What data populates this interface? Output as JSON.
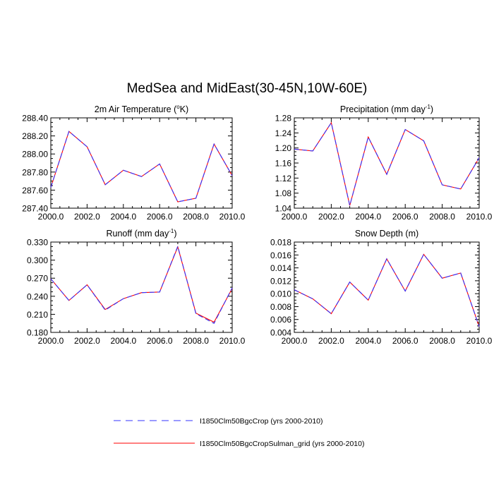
{
  "figure": {
    "title": "MedSea and MidEast(30-45N,10W-60E)"
  },
  "legend": {
    "entries": [
      {
        "label": "I1850Clm50BgcCrop (yrs 2000-2010)",
        "color": "#3333ff",
        "dash": true
      },
      {
        "label": "I1850Clm50BgcCropSulman_grid (yrs 2000-2010)",
        "color": "#ff0000",
        "dash": false
      }
    ]
  },
  "chart_data": [
    {
      "type": "line",
      "title": "2m Air Temperature (°K)",
      "title_parts": {
        "pre": "2m Air Temperature (",
        "sup": "o",
        "post": "K)"
      },
      "x": [
        2000,
        2001,
        2002,
        2003,
        2004,
        2005,
        2006,
        2007,
        2008,
        2009,
        2010
      ],
      "xlim": [
        2000,
        2010
      ],
      "xticks": [
        "2000.0",
        "2002.0",
        "2004.0",
        "2006.0",
        "2008.0",
        "2010.0"
      ],
      "ylim": [
        287.4,
        288.4
      ],
      "yticks": [
        "287.40",
        "287.60",
        "287.80",
        "288.00",
        "288.20",
        "288.40"
      ],
      "series": [
        {
          "name": "I1850Clm50BgcCrop (yrs 2000-2010)",
          "values": [
            287.63,
            288.25,
            288.08,
            287.66,
            287.82,
            287.75,
            287.89,
            287.47,
            287.51,
            288.11,
            287.76
          ]
        },
        {
          "name": "I1850Clm50BgcCropSulman_grid (yrs 2000-2010)",
          "values": [
            287.63,
            288.25,
            288.08,
            287.66,
            287.82,
            287.75,
            287.89,
            287.47,
            287.51,
            288.11,
            287.76
          ]
        }
      ]
    },
    {
      "type": "line",
      "title": "Precipitation (mm day-1)",
      "title_parts": {
        "pre": "Precipitation (mm day",
        "sup": "-1",
        "post": ")"
      },
      "x": [
        2000,
        2001,
        2002,
        2003,
        2004,
        2005,
        2006,
        2007,
        2008,
        2009,
        2010
      ],
      "xlim": [
        2000,
        2010
      ],
      "xticks": [
        "2000.0",
        "2002.0",
        "2004.0",
        "2006.0",
        "2008.0",
        "2010.0"
      ],
      "ylim": [
        1.04,
        1.28
      ],
      "yticks": [
        "1.04",
        "1.08",
        "1.12",
        "1.16",
        "1.20",
        "1.24",
        "1.28"
      ],
      "series": [
        {
          "name": "I1850Clm50BgcCrop (yrs 2000-2010)",
          "values": [
            1.197,
            1.192,
            1.267,
            1.047,
            1.229,
            1.13,
            1.249,
            1.219,
            1.102,
            1.091,
            1.174
          ]
        },
        {
          "name": "I1850Clm50BgcCropSulman_grid (yrs 2000-2010)",
          "values": [
            1.197,
            1.192,
            1.267,
            1.047,
            1.229,
            1.13,
            1.249,
            1.219,
            1.102,
            1.091,
            1.174
          ]
        }
      ]
    },
    {
      "type": "line",
      "title": "Runoff (mm day-1)",
      "title_parts": {
        "pre": "Runoff (mm day",
        "sup": "-1",
        "post": ")"
      },
      "x": [
        2000,
        2001,
        2002,
        2003,
        2004,
        2005,
        2006,
        2007,
        2008,
        2009,
        2010
      ],
      "xlim": [
        2000,
        2010
      ],
      "xticks": [
        "2000.0",
        "2002.0",
        "2004.0",
        "2006.0",
        "2008.0",
        "2010.0"
      ],
      "ylim": [
        0.18,
        0.33
      ],
      "yticks": [
        "0.180",
        "0.210",
        "0.240",
        "0.270",
        "0.300",
        "0.330"
      ],
      "series": [
        {
          "name": "I1850Clm50BgcCrop (yrs 2000-2010)",
          "values": [
            0.269,
            0.233,
            0.259,
            0.217,
            0.236,
            0.246,
            0.247,
            0.323,
            0.211,
            0.195,
            0.254
          ]
        },
        {
          "name": "I1850Clm50BgcCropSulman_grid (yrs 2000-2010)",
          "values": [
            0.269,
            0.233,
            0.259,
            0.218,
            0.236,
            0.246,
            0.247,
            0.322,
            0.212,
            0.197,
            0.253
          ]
        }
      ]
    },
    {
      "type": "line",
      "title": "Snow Depth (m)",
      "title_parts": {
        "pre": "Snow Depth (m)",
        "sup": "",
        "post": ""
      },
      "x": [
        2000,
        2001,
        2002,
        2003,
        2004,
        2005,
        2006,
        2007,
        2008,
        2009,
        2010
      ],
      "xlim": [
        2000,
        2010
      ],
      "xticks": [
        "2000.0",
        "2002.0",
        "2004.0",
        "2006.0",
        "2008.0",
        "2010.0"
      ],
      "ylim": [
        0.004,
        0.018
      ],
      "yticks": [
        "0.004",
        "0.006",
        "0.008",
        "0.010",
        "0.012",
        "0.014",
        "0.016",
        "0.018"
      ],
      "series": [
        {
          "name": "I1850Clm50BgcCrop (yrs 2000-2010)",
          "values": [
            0.0106,
            0.0092,
            0.0069,
            0.0118,
            0.009,
            0.0154,
            0.0104,
            0.0161,
            0.0124,
            0.0132,
            0.0049
          ]
        },
        {
          "name": "I1850Clm50BgcCropSulman_grid (yrs 2000-2010)",
          "values": [
            0.0106,
            0.0092,
            0.0069,
            0.0118,
            0.009,
            0.0154,
            0.0104,
            0.0161,
            0.0124,
            0.0132,
            0.0049
          ]
        }
      ]
    }
  ]
}
